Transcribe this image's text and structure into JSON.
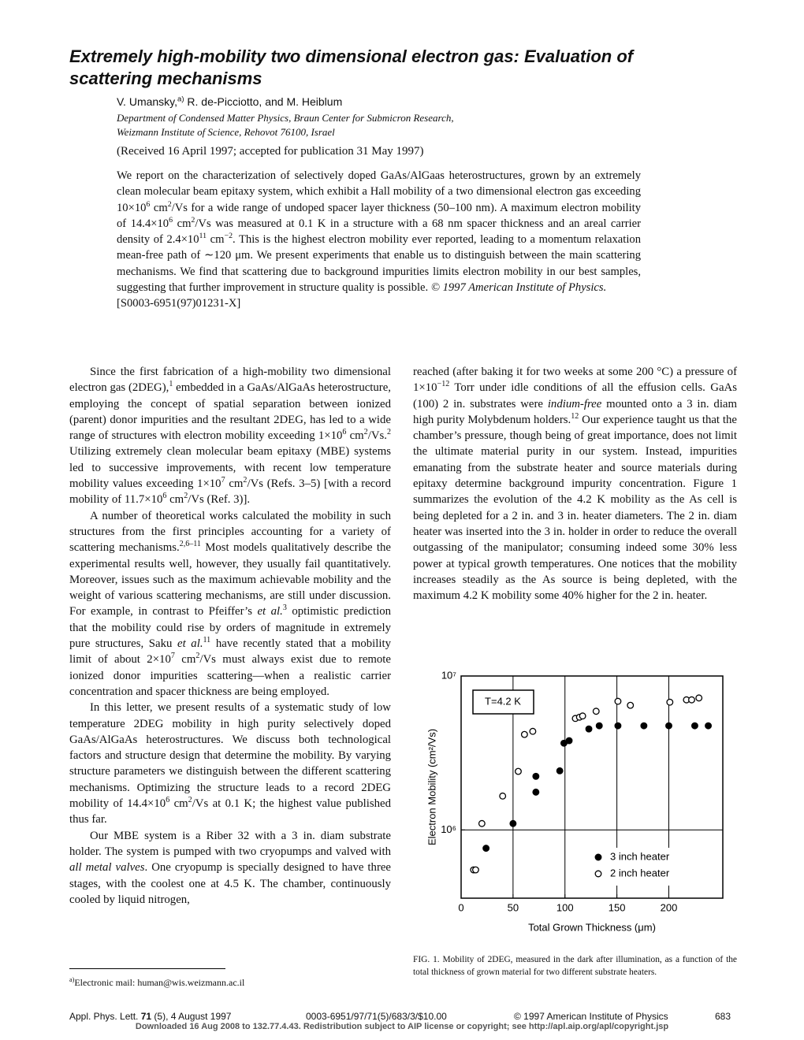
{
  "header": {
    "title": "Extremely high-mobility two dimensional electron gas: Evaluation of scattering mechanisms",
    "authors": [
      "V. Umansky,",
      {
        "sup": "a)"
      },
      " R. de-Picciotto, and M. Heiblum"
    ],
    "affiliation": [
      "Department of Condensed Matter Physics, Braun Center for Submicron Research,",
      "Weizmann Institute of Science, Rehovot 76100, Israel"
    ],
    "received": "(Received 16 April 1997; accepted for publication 31 May 1997)"
  },
  "abstract": {
    "text": [
      "We report on the characterization of selectively doped GaAs/AlGaas heterostructures, grown by an extremely clean molecular beam epitaxy system, which exhibit a Hall mobility of a two dimensional electron gas exceeding 10×10",
      {
        "sup": "6"
      },
      " cm",
      {
        "sup": "2"
      },
      "/Vs for a wide range of undoped spacer layer thickness (50–100 nm). A maximum electron mobility of 14.4×10",
      {
        "sup": "6"
      },
      " cm",
      {
        "sup": "2"
      },
      "/Vs was measured at 0.1 K in a structure with a 68 nm spacer thickness and an areal carrier density of 2.4×10",
      {
        "sup": "11"
      },
      " cm",
      {
        "sup": "−2"
      },
      ". This is the highest electron mobility ever reported, leading to a momentum relaxation mean-free path of ∼120 μm. We present experiments that enable us to distinguish between the main scattering mechanisms. We find that scattering due to background impurities limits electron mobility in our best samples, suggesting that further improvement in structure quality is possible. ",
      {
        "i": "© 1997 American Institute of Physics."
      }
    ],
    "pacs": "[S0003-6951(97)01231-X]"
  },
  "body": {
    "left": [
      [
        "Since the first fabrication of a high-mobility two dimensional electron gas (2DEG),",
        {
          "sup": "1"
        },
        " embedded in a GaAs/AlGaAs heterostructure, employing the concept of spatial separation between ionized (parent) donor impurities and the resultant 2DEG, has led to a wide range of structures with electron mobility exceeding 1×10",
        {
          "sup": "6"
        },
        " cm",
        {
          "sup": "2"
        },
        "/Vs.",
        {
          "sup": "2"
        },
        " Utilizing extremely clean molecular beam epitaxy (MBE) systems led to successive improvements, with recent low temperature mobility values exceeding 1×10",
        {
          "sup": "7"
        },
        " cm",
        {
          "sup": "2"
        },
        "/Vs (Refs. 3–5) [with a record mobility of 11.7×10",
        {
          "sup": "6"
        },
        " cm",
        {
          "sup": "2"
        },
        "/Vs (Ref. 3)]."
      ],
      [
        "A number of theoretical works calculated the mobility in such structures from the first principles accounting for a variety of scattering mechanisms.",
        {
          "sup": "2,6–11"
        },
        " Most models qualitatively describe the experimental results well, however, they usually fail quantitatively. Moreover, issues such as the maximum achievable mobility and the weight of various scattering mechanisms, are still under discussion. For example, in contrast to Pfeiffer’s ",
        {
          "i": "et al."
        },
        {
          "sup": "3"
        },
        " optimistic prediction that the mobility could rise by orders of magnitude in extremely pure structures, Saku ",
        {
          "i": "et al."
        },
        {
          "sup": "11"
        },
        " have recently stated that a mobility limit of about 2×10",
        {
          "sup": "7"
        },
        " cm",
        {
          "sup": "2"
        },
        "/Vs must always exist due to remote ionized donor impurities scattering—when a realistic carrier concentration and spacer thickness are being employed."
      ],
      [
        "In this letter, we present results of a systematic study of low temperature 2DEG mobility in high purity selectively doped GaAs/AlGaAs heterostructures. We discuss both technological factors and structure design that determine the mobility. By varying structure parameters we distinguish between the different scattering mechanisms. Optimizing the structure leads to a record 2DEG mobility of 14.4×10",
        {
          "sup": "6"
        },
        " cm",
        {
          "sup": "2"
        },
        "/Vs at 0.1 K; the highest value published thus far."
      ],
      [
        "Our MBE system is a Riber 32 with a 3 in. diam substrate holder. The system is pumped with two cryopumps and valved with ",
        {
          "i": "all metal valves"
        },
        ". One cryopump is specially designed to have three stages, with the coolest one at 4.5 K. The chamber, continuously cooled by liquid nitrogen,"
      ]
    ],
    "right": [
      [
        "reached (after baking it for two weeks at some 200 °C) a pressure of 1×10",
        {
          "sup": "−12"
        },
        " Torr under idle conditions of all the effusion cells. GaAs (100) 2 in. substrates were ",
        {
          "i": "indium-free"
        },
        " mounted onto a 3 in. diam high purity Molybdenum holders.",
        {
          "sup": "12"
        },
        " Our experience taught us that the chamber’s pressure, though being of great importance, does not limit the ultimate material purity in our system. Instead, impurities emanating from the substrate heater and source materials during epitaxy determine background impurity concentration. Figure 1 summarizes the evolution of the 4.2 K mobility as the As cell is being depleted for a 2 in. and 3 in. heater diameters. The 2 in. diam heater was inserted into the 3 in. holder in order to reduce the overall outgassing of the manipulator; consuming indeed some 30% less power at typical growth temperatures. One notices that the mobility increases steadily as the As source is being depleted, with the maximum 4.2 K mobility some 40% higher for the 2 in. heater."
      ]
    ]
  },
  "chart_data": {
    "type": "scatter",
    "xlabel": "Total Grown Thickness (μm)",
    "ylabel": "Electron Mobility (cm²/Vs)",
    "annotation": "T=4.2 K",
    "xlim": [
      0,
      252
    ],
    "xticks": [
      0,
      50,
      100,
      150,
      200
    ],
    "ylim": [
      360000,
      10000000
    ],
    "yscale": "log",
    "yticks": [
      {
        "value": 1000000,
        "label": "10⁶"
      },
      {
        "value": 10000000,
        "label": "10⁷"
      }
    ],
    "grid": true,
    "legend": "lower right",
    "series": [
      {
        "name": "3 inch heater",
        "marker": "filled",
        "color": "#000000",
        "x": [
          24,
          50,
          72,
          72,
          95,
          99,
          104,
          123,
          133,
          151,
          176,
          200,
          225,
          238
        ],
        "values": [
          760000,
          1100000,
          1760000,
          2230000,
          2420000,
          3660000,
          3800000,
          4530000,
          4750000,
          4750000,
          4750000,
          4750000,
          4750000,
          4750000
        ]
      },
      {
        "name": "2 inch heater",
        "marker": "open",
        "color": "#000000",
        "x": [
          12,
          14,
          20,
          40,
          55,
          61,
          69,
          110,
          114,
          117,
          130,
          151,
          163,
          201,
          217,
          222,
          229
        ],
        "values": [
          550000,
          550000,
          1100000,
          1660000,
          2400000,
          4170000,
          4370000,
          5300000,
          5400000,
          5500000,
          5900000,
          6850000,
          6450000,
          6760000,
          7000000,
          7000000,
          7200000
        ]
      }
    ]
  },
  "caption": "FIG. 1. Mobility of 2DEG, measured in the dark after illumination, as a function of the total thickness of grown material for two different substrate heaters.",
  "footnote": [
    {
      "sup": "a)"
    },
    "Electronic mail: human@wis.weizmann.ac.il"
  ],
  "footer": {
    "citation": [
      "Appl. Phys. Lett. ",
      {
        "b": "71"
      },
      " (5), 4 August 1997"
    ],
    "code": "0003-6951/97/71(5)/683/3/$10.00",
    "copyright": "© 1997 American Institute of Physics",
    "page": "683",
    "download": "Downloaded 16 Aug 2008 to 132.77.4.43. Redistribution subject to AIP license or copyright; see http://apl.aip.org/apl/copyright.jsp"
  }
}
